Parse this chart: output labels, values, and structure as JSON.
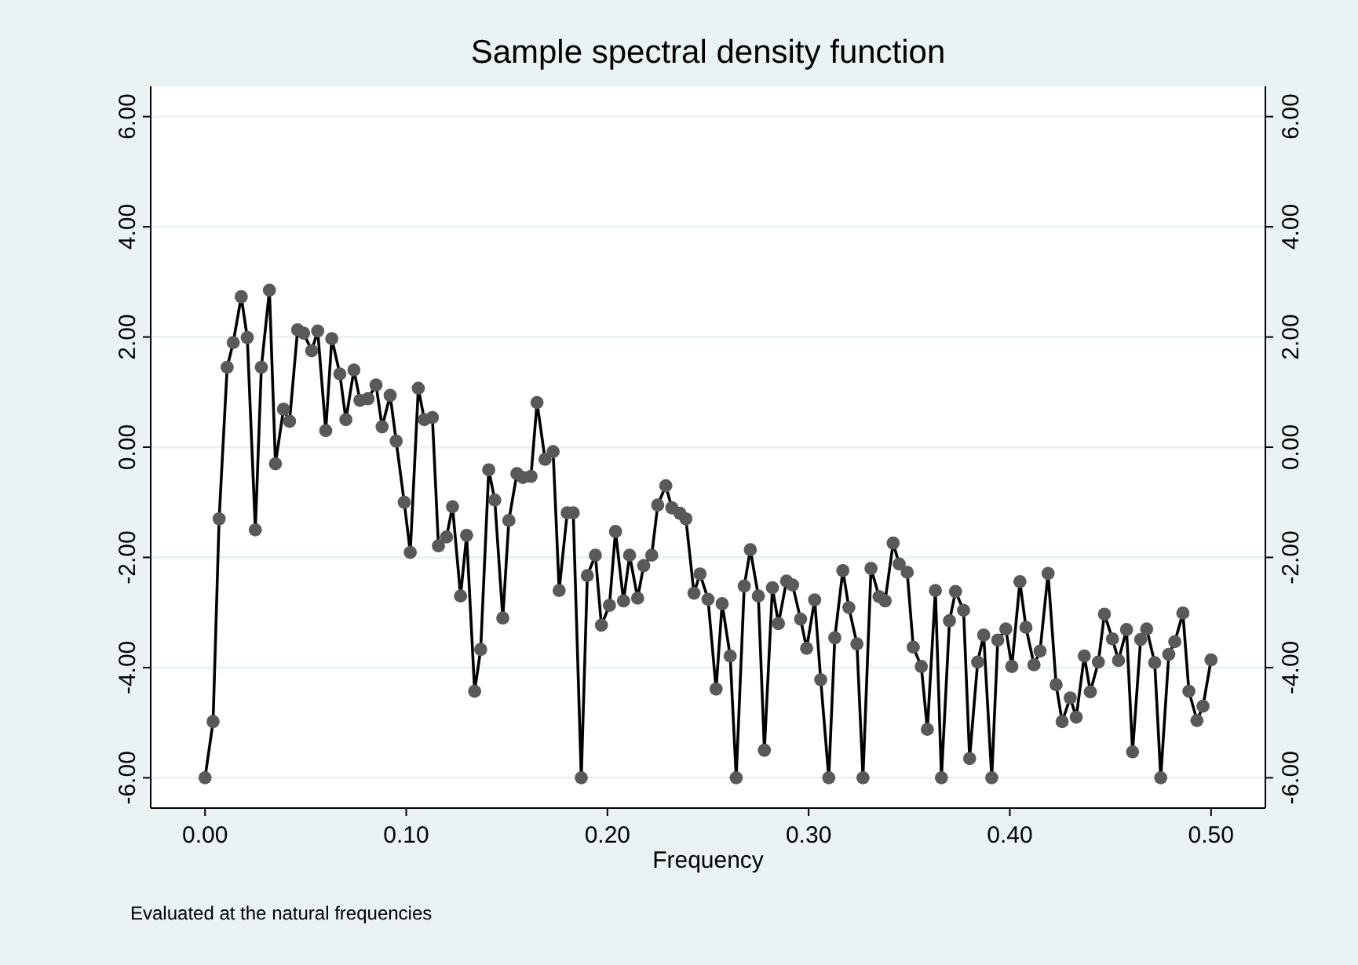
{
  "chart_data": {
    "type": "line",
    "title": "Sample spectral density function",
    "xlabel": "Frequency",
    "annotations": [
      "Evaluated at the natural frequencies"
    ],
    "series": [
      {
        "color": "#000000",
        "x": [
          0.0,
          0.004,
          0.007,
          0.011,
          0.014,
          0.018,
          0.021,
          0.025,
          0.028,
          0.032,
          0.035,
          0.039,
          0.042,
          0.046,
          0.049,
          0.053,
          0.056,
          0.06,
          0.063,
          0.067,
          0.07,
          0.074,
          0.077,
          0.081,
          0.085,
          0.088,
          0.092,
          0.095,
          0.099,
          0.102,
          0.106,
          0.109,
          0.113,
          0.116,
          0.12,
          0.123,
          0.127,
          0.13,
          0.134,
          0.137,
          0.141,
          0.144,
          0.148,
          0.151,
          0.155,
          0.158,
          0.162,
          0.165,
          0.169,
          0.173,
          0.176,
          0.18,
          0.183,
          0.187,
          0.19,
          0.194,
          0.197,
          0.201,
          0.204,
          0.208,
          0.211,
          0.215,
          0.218,
          0.222,
          0.225,
          0.229,
          0.232,
          0.236,
          0.239,
          0.243,
          0.246,
          0.25,
          0.254,
          0.257,
          0.261,
          0.264,
          0.268,
          0.271,
          0.275,
          0.278,
          0.282,
          0.285,
          0.289,
          0.292,
          0.296,
          0.299,
          0.303,
          0.306,
          0.31,
          0.313,
          0.317,
          0.32,
          0.324,
          0.327,
          0.331,
          0.335,
          0.338,
          0.342,
          0.345,
          0.349,
          0.352,
          0.356,
          0.359,
          0.363,
          0.366,
          0.37,
          0.373,
          0.377,
          0.38,
          0.384,
          0.387,
          0.391,
          0.394,
          0.398,
          0.401,
          0.405,
          0.408,
          0.412,
          0.415,
          0.419,
          0.423,
          0.426,
          0.43,
          0.433,
          0.437,
          0.44,
          0.444,
          0.447,
          0.451,
          0.454,
          0.458,
          0.461,
          0.465,
          0.468,
          0.472,
          0.475,
          0.479,
          0.482,
          0.486,
          0.489,
          0.493,
          0.496,
          0.5
        ],
        "values": [
          -6.0,
          -4.98,
          -1.3,
          1.45,
          1.9,
          2.73,
          1.99,
          -1.5,
          1.45,
          2.85,
          -0.3,
          0.69,
          0.47,
          2.13,
          2.07,
          1.75,
          2.11,
          0.3,
          1.97,
          1.33,
          0.5,
          1.4,
          0.85,
          0.88,
          1.13,
          0.37,
          0.94,
          0.11,
          -1.0,
          -1.91,
          1.07,
          0.5,
          0.54,
          -1.79,
          -1.63,
          -1.08,
          -2.7,
          -1.6,
          -4.43,
          -3.67,
          -0.41,
          -0.96,
          -3.1,
          -1.33,
          -0.48,
          -0.55,
          -0.53,
          0.81,
          -0.22,
          -0.08,
          -2.6,
          -1.19,
          -1.19,
          -6.0,
          -2.33,
          -1.96,
          -3.23,
          -2.87,
          -1.53,
          -2.79,
          -1.96,
          -2.74,
          -2.15,
          -1.96,
          -1.05,
          -0.7,
          -1.1,
          -1.2,
          -1.3,
          -2.65,
          -2.3,
          -2.76,
          -4.39,
          -2.84,
          -3.79,
          -6.0,
          -2.52,
          -1.86,
          -2.7,
          -5.5,
          -2.55,
          -3.2,
          -2.43,
          -2.5,
          -3.12,
          -3.65,
          -2.77,
          -4.22,
          -6.0,
          -3.46,
          -2.24,
          -2.91,
          -3.57,
          -6.0,
          -2.2,
          -2.71,
          -2.79,
          -1.74,
          -2.12,
          -2.27,
          -3.63,
          -3.98,
          -5.12,
          -2.6,
          -6.0,
          -3.15,
          -2.62,
          -2.96,
          -5.65,
          -3.9,
          -3.41,
          -6.0,
          -3.5,
          -3.3,
          -3.98,
          -2.44,
          -3.27,
          -3.95,
          -3.7,
          -2.29,
          -4.31,
          -4.98,
          -4.55,
          -4.9,
          -3.79,
          -4.44,
          -3.9,
          -3.03,
          -3.48,
          -3.87,
          -3.31,
          -5.53,
          -3.49,
          -3.3,
          -3.91,
          -6.0,
          -3.76,
          -3.53,
          -3.01,
          -4.43,
          -4.96,
          -4.7,
          -3.86
        ]
      }
    ],
    "xlim": [
      -0.027,
      0.527
    ],
    "ylim": [
      -6.55,
      6.55
    ],
    "xticks": [
      {
        "value": 0,
        "label": "0.00"
      },
      {
        "value": 0.1,
        "label": "0.10"
      },
      {
        "value": 0.2,
        "label": "0.20"
      },
      {
        "value": 0.3,
        "label": "0.30"
      },
      {
        "value": 0.4,
        "label": "0.40"
      },
      {
        "value": 0.5,
        "label": "0.50"
      }
    ],
    "yticks": [
      {
        "value": -6,
        "label": "-6.00"
      },
      {
        "value": -4,
        "label": "-4.00"
      },
      {
        "value": -2,
        "label": "-2.00"
      },
      {
        "value": 0,
        "label": "0.00"
      },
      {
        "value": 2,
        "label": "2.00"
      },
      {
        "value": 4,
        "label": "4.00"
      },
      {
        "value": 6,
        "label": "6.00"
      }
    ],
    "y2lim": [
      -6.55,
      6.55
    ],
    "y2ticks": [
      {
        "value": -6,
        "label": "-6.00"
      },
      {
        "value": -4,
        "label": "-4.00"
      },
      {
        "value": -2,
        "label": "-2.00"
      },
      {
        "value": 0,
        "label": "0.00"
      },
      {
        "value": 2,
        "label": "2.00"
      },
      {
        "value": 4,
        "label": "4.00"
      },
      {
        "value": 6,
        "label": "6.00"
      }
    ],
    "grid": "y",
    "marker": "circle",
    "line_style": "solid"
  }
}
